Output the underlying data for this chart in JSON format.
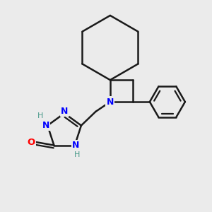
{
  "bg_color": "#ebebeb",
  "bond_color": "#1a1a1a",
  "N_color": "#0000ff",
  "O_color": "#ff0000",
  "H_color": "#4a9a8a",
  "lw": 1.8,
  "figsize": [
    3.0,
    3.0
  ],
  "dpi": 100,
  "xlim": [
    0,
    10
  ],
  "ylim": [
    0,
    10
  ]
}
